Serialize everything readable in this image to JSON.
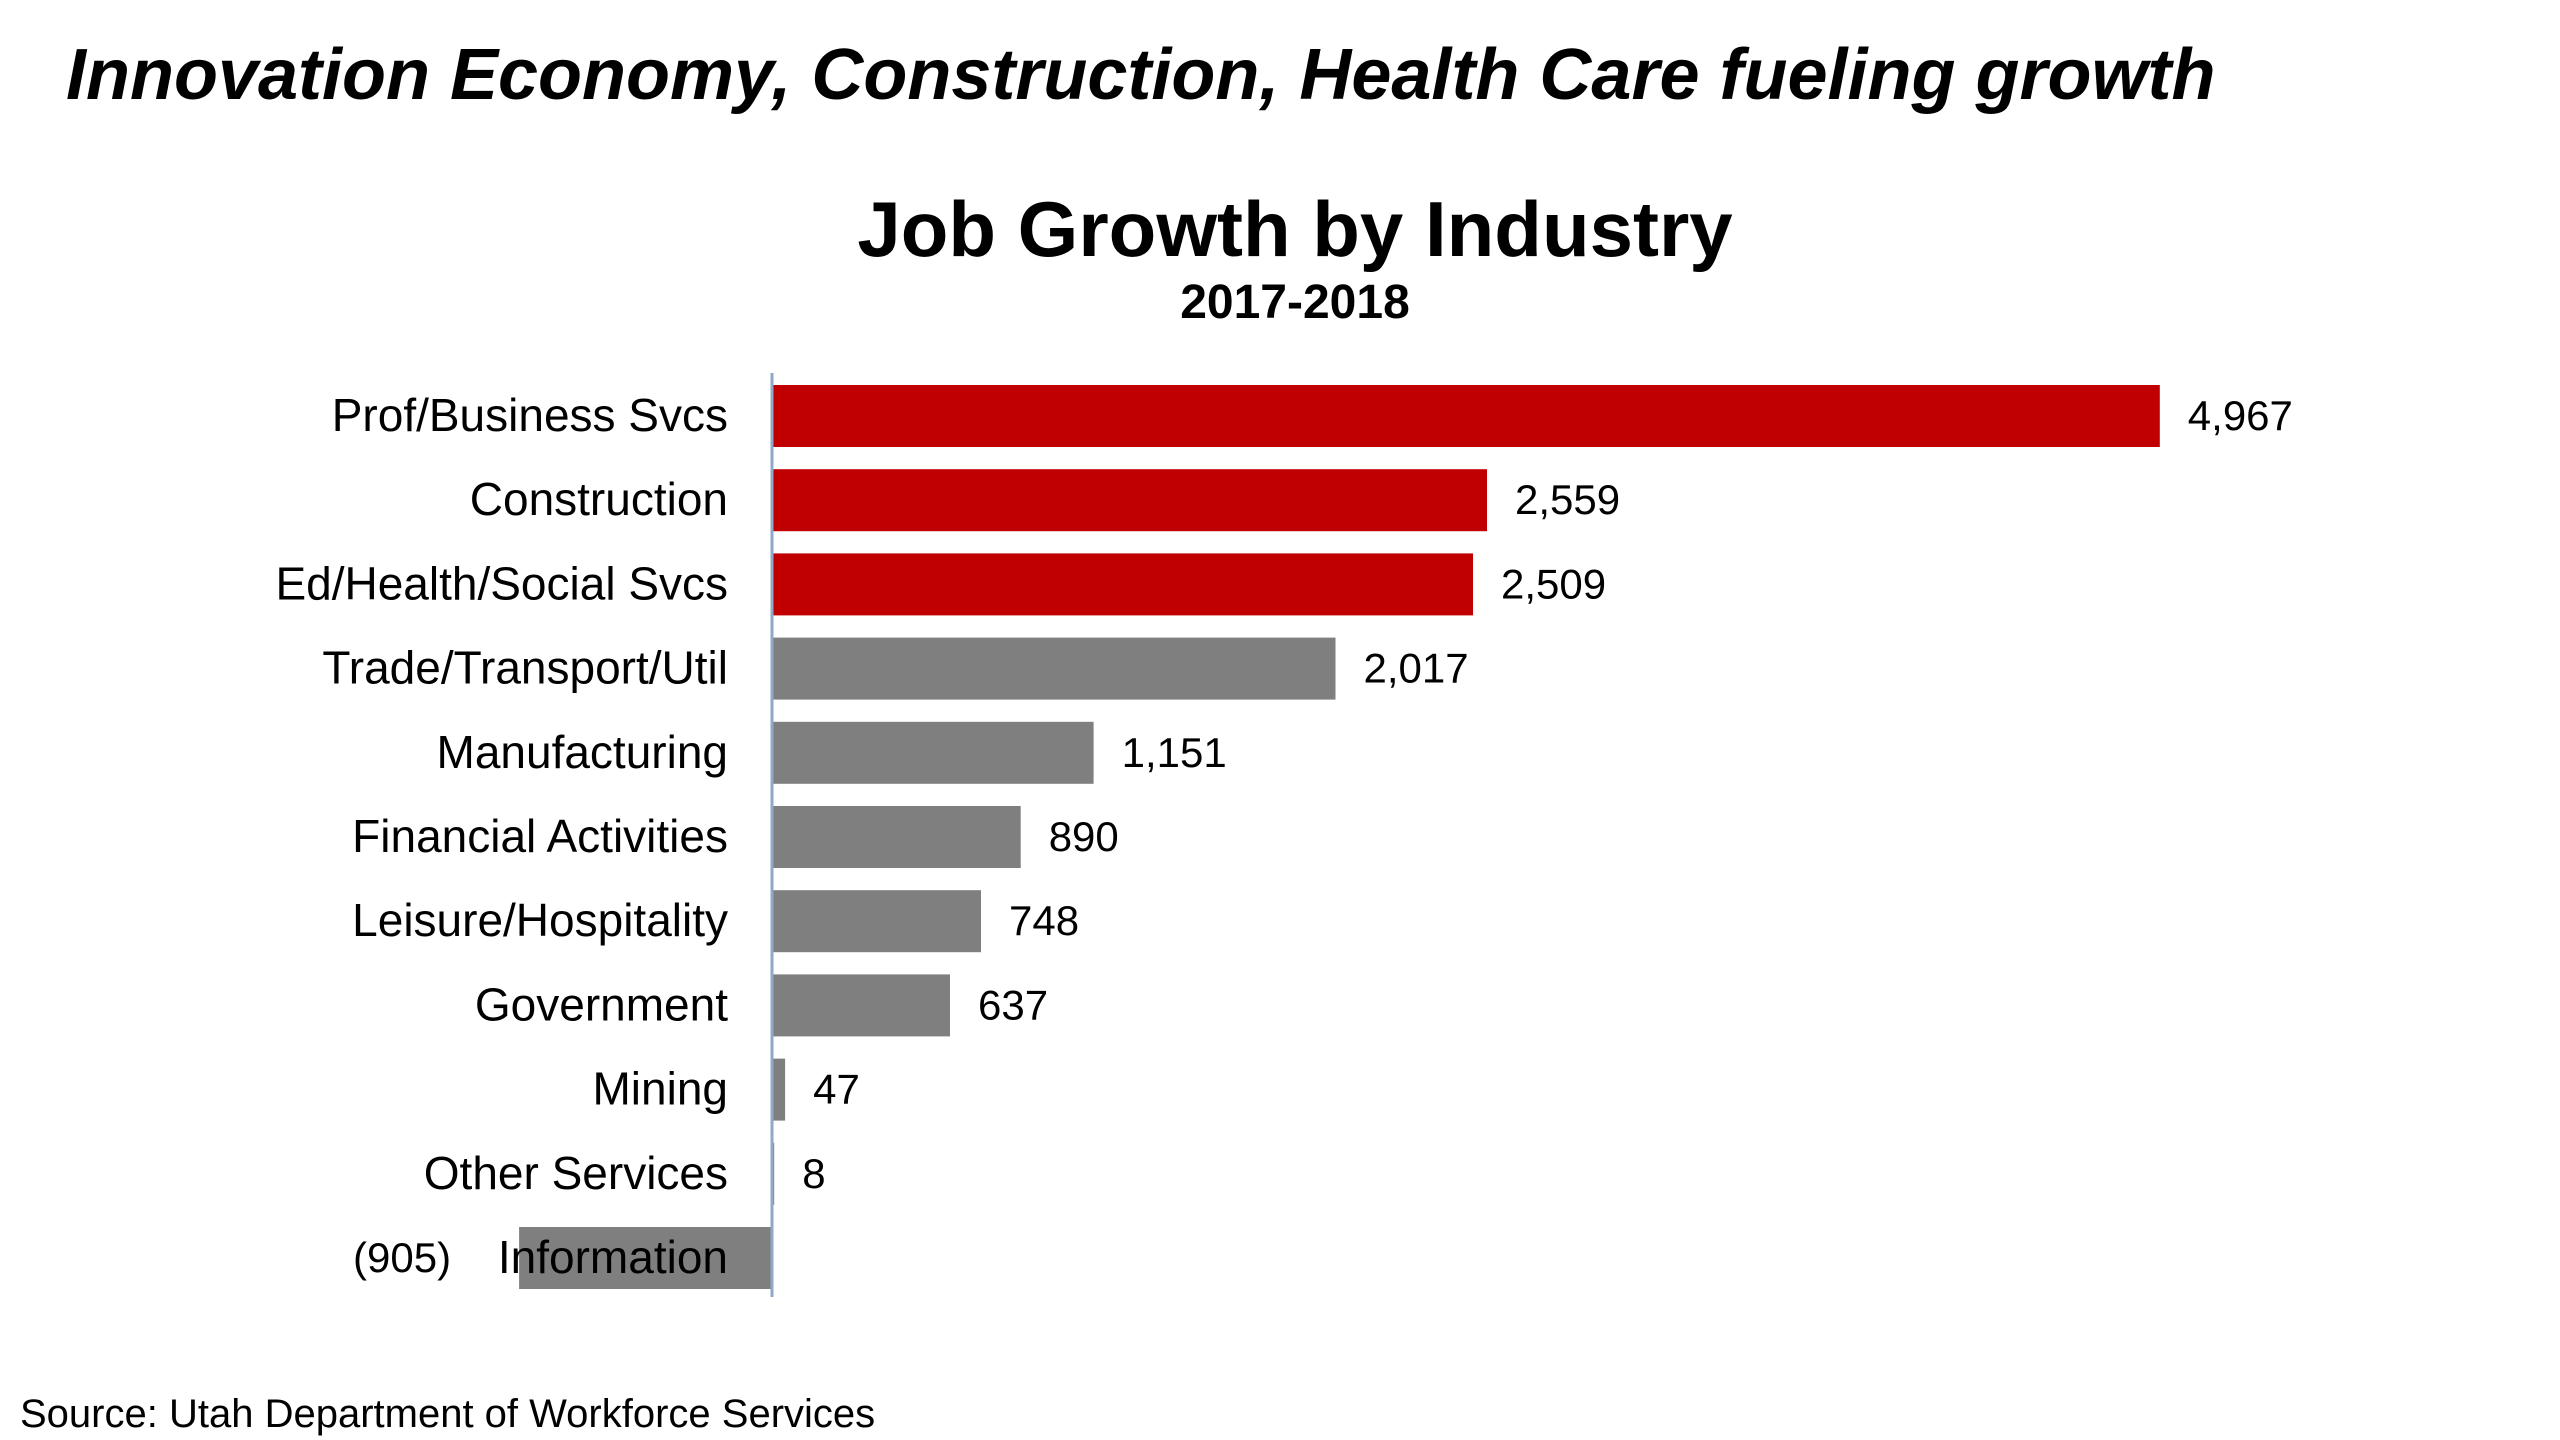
{
  "headline": "Innovation Economy, Construction, Health Care fueling growth",
  "source": "Source:  Utah Department of Workforce Services",
  "colors": {
    "highlight": "#C00000",
    "default": "#7F7F7F",
    "axis": "#8EA9C9"
  },
  "chart_data": {
    "type": "bar",
    "orientation": "horizontal",
    "title": "Job Growth by Industry",
    "subtitle": "2017-2018",
    "xlabel": "",
    "ylabel": "",
    "grid": false,
    "legend": "none",
    "categories": [
      "Prof/Business Svcs",
      "Construction",
      "Ed/Health/Social Svcs",
      "Trade/Transport/Util",
      "Manufacturing",
      "Financial Activities",
      "Leisure/Hospitality",
      "Government",
      "Mining",
      "Other Services",
      "Information"
    ],
    "values": [
      4967,
      2559,
      2509,
      2017,
      1151,
      890,
      748,
      637,
      47,
      8,
      -905
    ],
    "value_labels": [
      "4,967",
      "2,559",
      "2,509",
      "2,017",
      "1,151",
      "890",
      "748",
      "637",
      "47",
      "8",
      "(905)"
    ],
    "highlighted": [
      true,
      true,
      true,
      false,
      false,
      false,
      false,
      false,
      false,
      false,
      false
    ]
  }
}
